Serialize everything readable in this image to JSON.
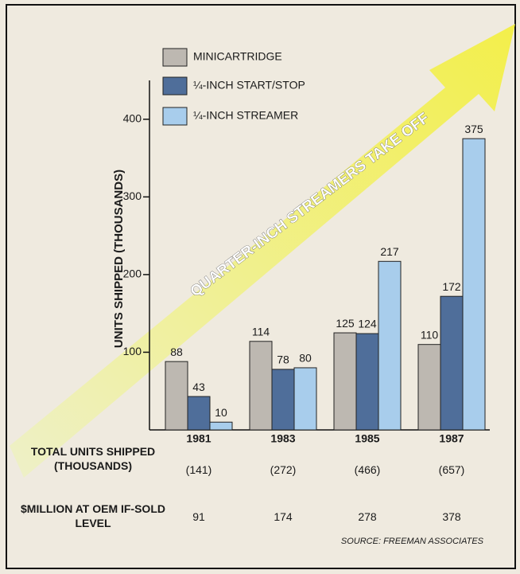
{
  "chart_data": {
    "type": "bar",
    "title": "QUARTER-INCH STREAMERS TAKE OFF",
    "ylabel": "UNITS SHIPPED (THOUSANDS)",
    "categories": [
      "1981",
      "1983",
      "1985",
      "1987"
    ],
    "series": [
      {
        "name": "MINICARTRIDGE",
        "color": "#bdb8b1",
        "values": [
          88,
          114,
          125,
          110
        ]
      },
      {
        "name": "¼-INCH START/STOP",
        "color": "#4f6e9a",
        "values": [
          43,
          78,
          124,
          172
        ]
      },
      {
        "name": "¼-INCH STREAMER",
        "color": "#a8cdec",
        "values": [
          10,
          80,
          217,
          375
        ]
      }
    ],
    "ylim": [
      0,
      450
    ],
    "yticks": [
      100,
      200,
      300,
      400
    ],
    "grid": false,
    "legend": "top-left"
  },
  "table": {
    "rows": [
      {
        "label": "TOTAL UNITS SHIPPED (THOUSANDS)",
        "cells": [
          "(141)",
          "(272)",
          "(466)",
          "(657)"
        ]
      },
      {
        "label": "$MILLION AT OEM IF-SOLD LEVEL",
        "cells": [
          91,
          174,
          278,
          378
        ]
      }
    ]
  },
  "source": "SOURCE: FREEMAN ASSOCIATES"
}
